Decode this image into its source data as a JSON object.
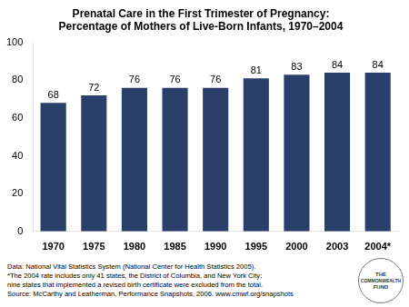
{
  "chart_data": {
    "type": "bar",
    "title": [
      "Prenatal Care in the First Trimester of Pregnancy:",
      "Percentage of Mothers of Live-Born Infants, 1970–2004"
    ],
    "categories": [
      "1970",
      "1975",
      "1980",
      "1985",
      "1990",
      "1995",
      "2000",
      "2003",
      "2004*"
    ],
    "values": [
      68,
      72,
      76,
      76,
      76,
      81,
      83,
      84,
      84
    ],
    "color": "#2B3F6B",
    "ylim": [
      0,
      100
    ],
    "yticks": [
      0,
      20,
      40,
      60,
      80,
      100
    ],
    "grid": false,
    "data_labels": true,
    "annotations": [
      "Data: National Vital Statistics System (National Center for Health Statistics 2005).",
      "*The 2004 rate includes only 41 states, the District of Columbia, and New York City;",
      "nine states that implemented a revised birth certificate were excluded from the total.",
      "Source: McCarthy and Leatherman, Performance Snapshots, 2006. www.cmwf.org/snapshots"
    ],
    "logo": [
      "THE",
      "COMMONWEALTH",
      "FUND"
    ]
  }
}
